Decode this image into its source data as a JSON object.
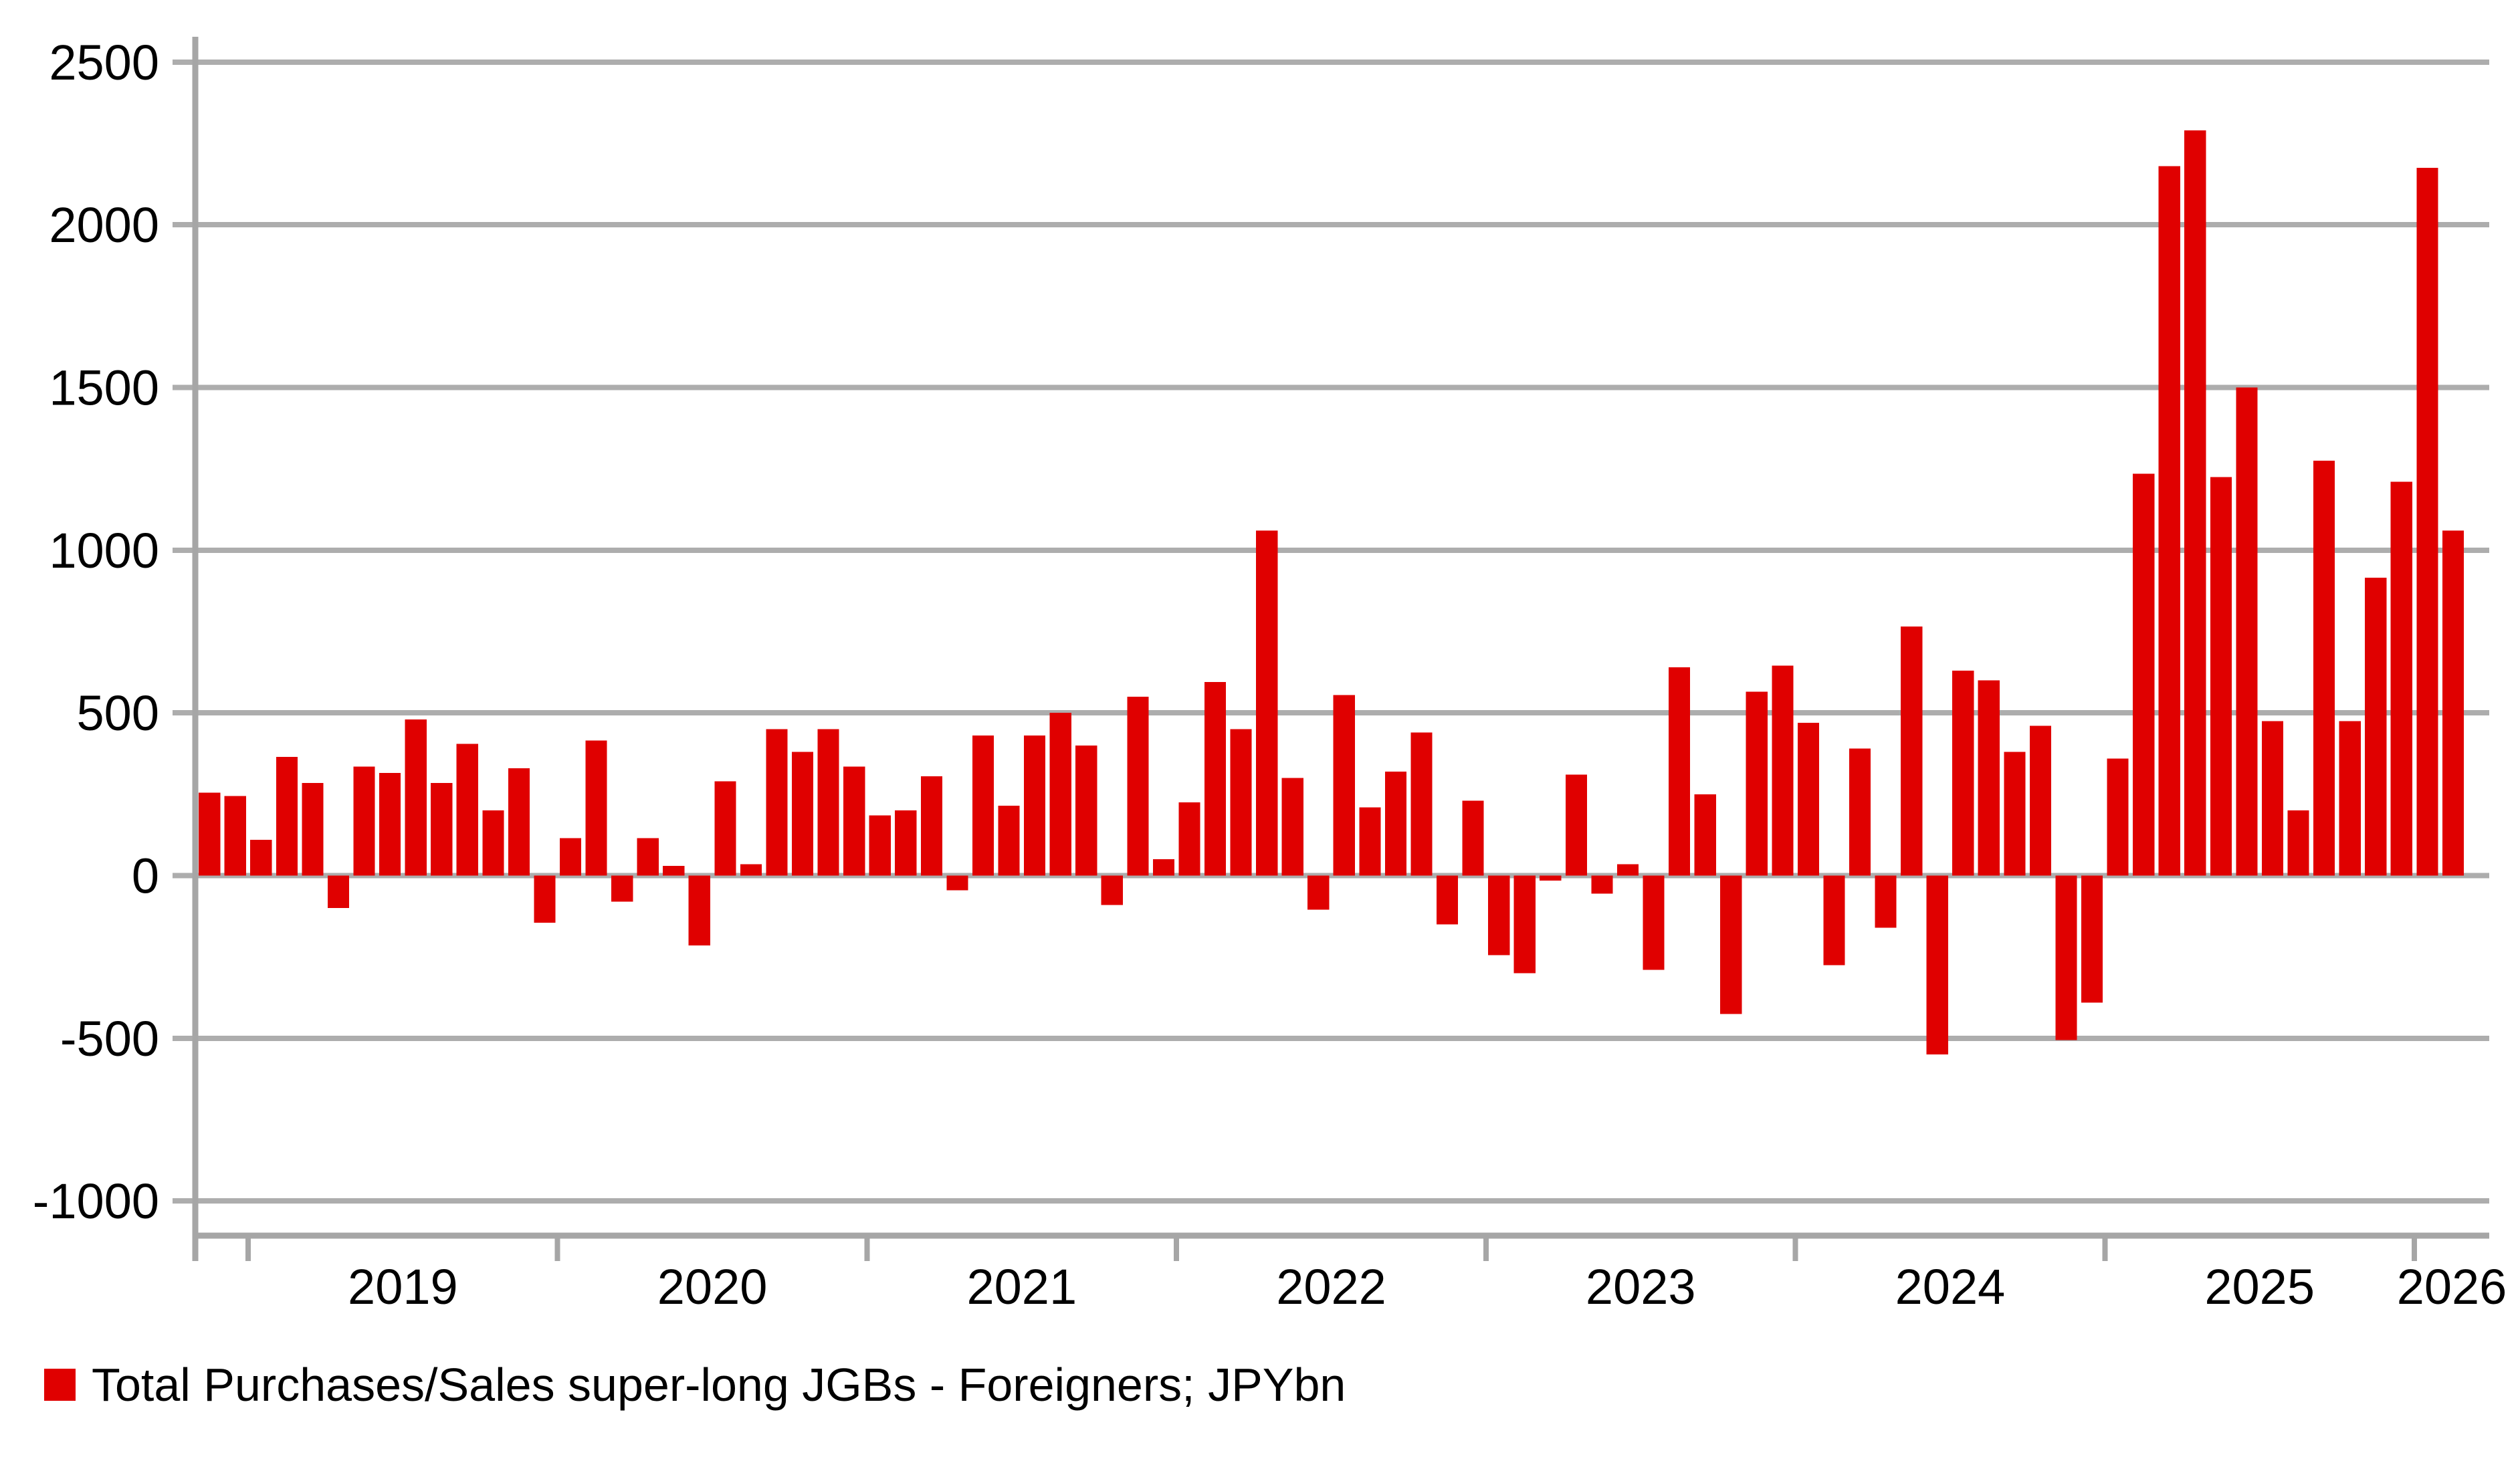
{
  "chart_data": {
    "type": "bar",
    "title": "",
    "legend": {
      "label": "Total Purchases/Sales super-long JGBs - Foreigners; JPYbn",
      "position": "bottom-left"
    },
    "xlabel": "",
    "ylabel": "",
    "ylim": [
      -1000,
      2500
    ],
    "y_ticks": [
      "-1000",
      "-500",
      "0",
      "500",
      "1000",
      "1500",
      "2000",
      "2500"
    ],
    "x_year_ticks": [
      "2019",
      "2020",
      "2021",
      "2022",
      "2023",
      "2024",
      "2025",
      "2026"
    ],
    "grid": "horizontal",
    "bar_color": "#E00000",
    "grid_color": "#ADADAD",
    "axis_color": "#A6A6A6",
    "text_color": "#000000",
    "background_color": "#FFFFFF",
    "categories": [
      "2018-11",
      "2018-12",
      "2019-01",
      "2019-02",
      "2019-03",
      "2019-04",
      "2019-05",
      "2019-06",
      "2019-07",
      "2019-08",
      "2019-09",
      "2019-10",
      "2019-11",
      "2019-12",
      "2020-01",
      "2020-02",
      "2020-03",
      "2020-04",
      "2020-05",
      "2020-06",
      "2020-07",
      "2020-08",
      "2020-09",
      "2020-10",
      "2020-11",
      "2020-12",
      "2021-01",
      "2021-02",
      "2021-03",
      "2021-04",
      "2021-05",
      "2021-06",
      "2021-07",
      "2021-08",
      "2021-09",
      "2021-10",
      "2021-11",
      "2021-12",
      "2022-01",
      "2022-02",
      "2022-03",
      "2022-04",
      "2022-05",
      "2022-06",
      "2022-07",
      "2022-08",
      "2022-09",
      "2022-10",
      "2022-11",
      "2022-12",
      "2023-01",
      "2023-02",
      "2023-03",
      "2023-04",
      "2023-05",
      "2023-06",
      "2023-07",
      "2023-08",
      "2023-09",
      "2023-10",
      "2023-11",
      "2023-12",
      "2024-01",
      "2024-02",
      "2024-03",
      "2024-04",
      "2024-05",
      "2024-06",
      "2024-07",
      "2024-08",
      "2024-09",
      "2024-10",
      "2024-11",
      "2024-12",
      "2025-01",
      "2025-02",
      "2025-03",
      "2025-04",
      "2025-05",
      "2025-06",
      "2025-07",
      "2025-08",
      "2025-09",
      "2025-10",
      "2025-11",
      "2025-12",
      "2026-01",
      "2026-02"
    ],
    "values": [
      255,
      245,
      110,
      365,
      285,
      -100,
      335,
      315,
      480,
      285,
      405,
      200,
      330,
      -145,
      115,
      415,
      -80,
      115,
      30,
      -215,
      290,
      35,
      450,
      380,
      450,
      335,
      185,
      200,
      305,
      -45,
      430,
      215,
      430,
      500,
      400,
      -90,
      550,
      50,
      225,
      595,
      450,
      1060,
      300,
      -105,
      555,
      210,
      320,
      440,
      -150,
      230,
      -245,
      -300,
      -15,
      310,
      -55,
      35,
      -290,
      640,
      250,
      -425,
      565,
      645,
      470,
      -275,
      390,
      -160,
      765,
      -550,
      630,
      600,
      380,
      460,
      -505,
      -390,
      360,
      1235,
      2180,
      2290,
      1225,
      1500,
      475,
      200,
      1275,
      475,
      915,
      1210,
      2175,
      1060
    ]
  }
}
